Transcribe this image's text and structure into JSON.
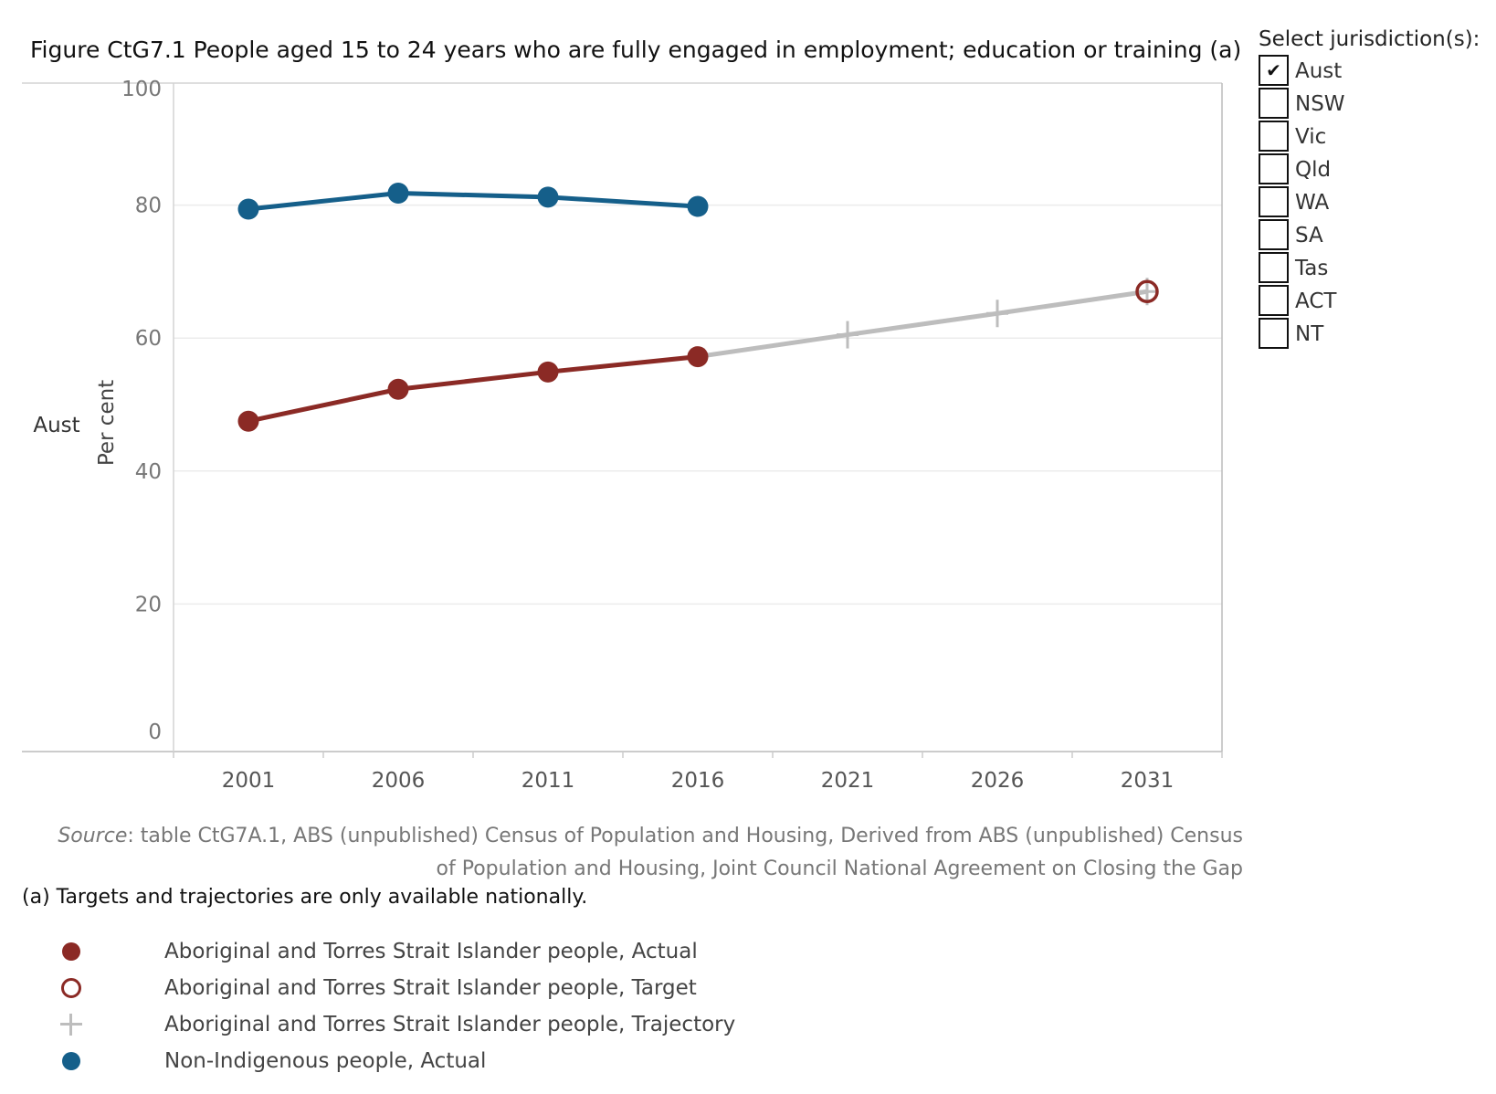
{
  "chart_data": {
    "type": "line",
    "title": "Figure CtG7.1 People aged 15 to 24 years who are fully engaged in employment; education or training (a)",
    "row_label": "Aust",
    "ylabel": "Per cent",
    "xlabel": "",
    "ylim": [
      0,
      100
    ],
    "yticks": [
      0,
      20,
      40,
      60,
      80,
      100
    ],
    "x": [
      2001,
      2006,
      2011,
      2016,
      2021,
      2026,
      2031
    ],
    "xlim": [
      1998.5,
      2033.5
    ],
    "grid": true,
    "series": [
      {
        "key": "nonindig",
        "name": "Non-Indigenous people, Actual",
        "color": "#155f8a",
        "marker": "dot",
        "x": [
          2001,
          2006,
          2011,
          2016
        ],
        "values": [
          79.4,
          81.8,
          81.2,
          79.8
        ]
      },
      {
        "key": "trajectory",
        "name": "Aboriginal and Torres Strait Islander people, Trajectory",
        "color": "#bdbdbd",
        "marker": "plus",
        "x": [
          2016,
          2021,
          2026,
          2031
        ],
        "values": [
          57.2,
          60.5,
          63.7,
          67.0
        ]
      },
      {
        "key": "actual",
        "name": "Aboriginal and Torres Strait Islander people, Actual",
        "color": "#8b2a25",
        "marker": "dot",
        "x": [
          2001,
          2006,
          2011,
          2016
        ],
        "values": [
          47.5,
          52.3,
          54.9,
          57.2
        ]
      },
      {
        "key": "target",
        "name": "Aboriginal and Torres Strait Islander people, Target",
        "color": "#8b2a25",
        "marker": "ring",
        "x": [
          2031
        ],
        "values": [
          67.0
        ]
      }
    ]
  },
  "filter": {
    "title": "Select jurisdiction(s):",
    "items": [
      {
        "label": "Aust",
        "checked": true
      },
      {
        "label": "NSW",
        "checked": false
      },
      {
        "label": "Vic",
        "checked": false
      },
      {
        "label": "Qld",
        "checked": false
      },
      {
        "label": "WA",
        "checked": false
      },
      {
        "label": "SA",
        "checked": false
      },
      {
        "label": "Tas",
        "checked": false
      },
      {
        "label": "ACT",
        "checked": false
      },
      {
        "label": "NT",
        "checked": false
      }
    ]
  },
  "source": {
    "lead": "Source",
    "text": ": table CtG7A.1, ABS (unpublished) Census of Population and Housing, Derived from ABS (unpublished) Census of Population and Housing, Joint Council National Agreement on Closing the Gap"
  },
  "footnote": "(a) Targets and trajectories are only available nationally.",
  "legend": [
    {
      "marker": "dot",
      "color": "#8b2a25",
      "label": "Aboriginal and Torres Strait Islander people, Actual"
    },
    {
      "marker": "ring",
      "color": "#8b2a25",
      "label": "Aboriginal and Torres Strait Islander people, Target"
    },
    {
      "marker": "plus",
      "color": "#bdbdbd",
      "label": "Aboriginal and Torres Strait Islander people, Trajectory"
    },
    {
      "marker": "dot",
      "color": "#155f8a",
      "label": "Non-Indigenous people, Actual"
    }
  ]
}
